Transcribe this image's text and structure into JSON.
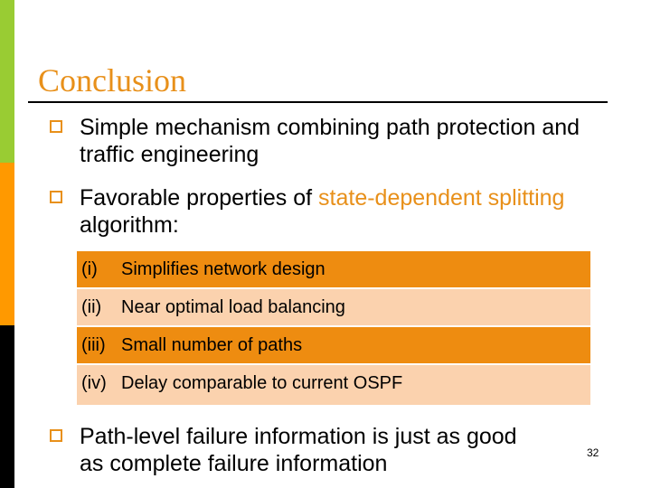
{
  "title": "Conclusion",
  "bullets": [
    {
      "text": "Simple mechanism combining path protection and traffic engineering"
    },
    {
      "pre": "Favorable properties of ",
      "highlight": "state-dependent splitting",
      "post": " algorithm:"
    },
    {
      "text": "Path-level failure information is just as good as complete failure information"
    }
  ],
  "properties": [
    {
      "num": "(i)",
      "label": "Simplifies network design"
    },
    {
      "num": "(ii)",
      "label": "Near optimal load balancing"
    },
    {
      "num": "(iii)",
      "label": "Small number of paths"
    },
    {
      "num": "(iv)",
      "label": "Delay comparable to current OSPF"
    }
  ],
  "page_number": "32",
  "colors": {
    "accent": "#e8901a",
    "row_dark": "#ee8c10",
    "row_light": "#fbd2ae",
    "band_green": "#99cc33",
    "band_orange": "#ff9900",
    "band_black": "#000000"
  }
}
